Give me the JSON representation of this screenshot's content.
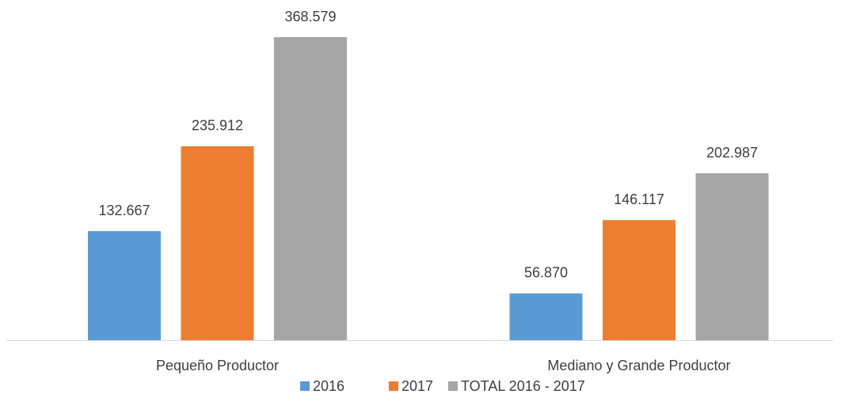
{
  "chart_data": {
    "type": "bar",
    "categories": [
      "Pequeño Productor",
      "Mediano y Grande Productor"
    ],
    "series": [
      {
        "name": "2016",
        "color": "#5b9bd5",
        "values": [
          132.667,
          56.87
        ],
        "value_labels": [
          "132.667",
          "56.870"
        ]
      },
      {
        "name": "2017",
        "color": "#ed7d31",
        "values": [
          235.912,
          146.117
        ],
        "value_labels": [
          "235.912",
          "146.117"
        ]
      },
      {
        "name": "TOTAL 2016 - 2017",
        "color": "#a5a5a5",
        "values": [
          368.579,
          202.987
        ],
        "value_labels": [
          "368.579",
          "202.987"
        ]
      }
    ]
  }
}
